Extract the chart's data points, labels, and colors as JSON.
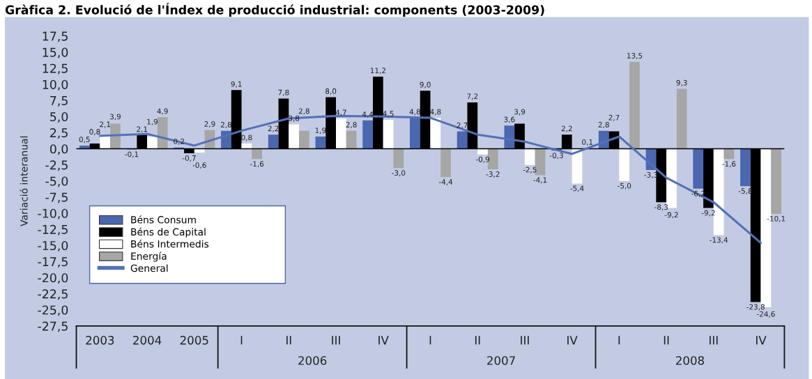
{
  "chart_data": {
    "type": "bar",
    "title": "Gràfica 2. Evolució de l'Índex de producció industrial: components (2003-2009)",
    "ylabel": "Variació interanual",
    "categories": [
      "2003",
      "2004",
      "2005",
      "I",
      "II",
      "III",
      "IV",
      "I",
      "II",
      "III",
      "IV",
      "I",
      "II",
      "III",
      "IV"
    ],
    "series": [
      {
        "name": "Béns Consum",
        "color": "#4a67b0",
        "values": [
          0.5,
          -0.1,
          0.2,
          2.8,
          2.2,
          1.9,
          4.4,
          4.8,
          2.7,
          3.6,
          -0.3,
          2.8,
          -3.3,
          -6.2,
          -5.8
        ],
        "value_labels": [
          "0,5",
          "-0,1",
          "0,2",
          "2,8",
          "2,2",
          "1,9",
          "4,4",
          "4,8",
          "2,7",
          "3,6",
          "-0,3",
          "2,8",
          "-3,3",
          "-6,2",
          "-5,8"
        ]
      },
      {
        "name": "Béns de Capital",
        "color": "#000000",
        "values": [
          0.8,
          2.1,
          -0.7,
          9.1,
          7.8,
          8.0,
          11.2,
          9.0,
          7.2,
          3.9,
          2.2,
          2.7,
          -8.3,
          -9.2,
          -23.8
        ],
        "value_labels": [
          "0,8",
          "2,1",
          "-0,7",
          "9,1",
          "7,8",
          "8,0",
          "11,2",
          "9,0",
          "7,2",
          "3,9",
          "2,2",
          "2,7",
          "-8,3",
          "-9,2",
          "-23,8"
        ]
      },
      {
        "name": "Béns Intermedis",
        "color": "#ffffff",
        "values": [
          2.1,
          1.9,
          -0.6,
          0.8,
          3.8,
          4.7,
          4.5,
          4.8,
          -0.9,
          -2.5,
          -5.4,
          -5.0,
          -9.2,
          -13.4,
          -24.6
        ],
        "value_labels": [
          "2,1",
          "1,9",
          "-0,6",
          "0,8",
          "3,8",
          "4,7",
          "4,5",
          "4,8",
          "-0,9",
          "-2,5",
          "-5,4",
          "-5,0",
          "-9,2",
          "-13,4",
          "-24,6"
        ]
      },
      {
        "name": "Energía",
        "color": "#a6a6a6",
        "values": [
          3.9,
          4.9,
          2.9,
          -1.6,
          2.8,
          2.8,
          -3.0,
          -4.4,
          -3.2,
          -4.1,
          0.1,
          13.5,
          9.3,
          -1.6,
          -10.1
        ],
        "value_labels": [
          "3,9",
          "4,9",
          "2,9",
          "-1,6",
          "2,8",
          "2,8",
          "-3,0",
          "-4,4",
          "-3,2",
          "-4,1",
          "0,1",
          "13,5",
          "9,3",
          "-1,6",
          "-10,1"
        ]
      },
      {
        "name": "General",
        "type": "line",
        "color": "#5470b8",
        "values": [
          2.0,
          2.3,
          0.5,
          2.8,
          4.7,
          5.1,
          5.0,
          4.8,
          2.2,
          1.1,
          -0.8,
          1.9,
          -4.5,
          -8.3,
          -14.6
        ]
      }
    ],
    "ylim": [
      -27.5,
      17.5
    ],
    "yticks": [
      {
        "value": -27.5,
        "label": "-27,5"
      },
      {
        "value": -25,
        "label": "-25,0"
      },
      {
        "value": -22.5,
        "label": "-22,5"
      },
      {
        "value": -20,
        "label": "-20,0"
      },
      {
        "value": -17.5,
        "label": "-17,5"
      },
      {
        "value": -15,
        "label": "-15,0"
      },
      {
        "value": -12.5,
        "label": "-12,5"
      },
      {
        "value": -10,
        "label": "-10,0"
      },
      {
        "value": -7.5,
        "label": "-7,5"
      },
      {
        "value": -5,
        "label": "-5,0"
      },
      {
        "value": -2.5,
        "label": "-2,5"
      },
      {
        "value": 0,
        "label": "0,0"
      },
      {
        "value": 2.5,
        "label": "2,5"
      },
      {
        "value": 5,
        "label": "5,0"
      },
      {
        "value": 7.5,
        "label": "7,5"
      },
      {
        "value": 10,
        "label": "10,0"
      },
      {
        "value": 12.5,
        "label": "12,5"
      },
      {
        "value": 15,
        "label": "15,0"
      },
      {
        "value": 17.5,
        "label": "17,5"
      }
    ],
    "ref_lines": [
      {
        "axis": "y",
        "value": 0,
        "color": "#000000"
      }
    ],
    "legend": "lower left",
    "annotations": [
      "2006",
      "2007",
      "2008"
    ]
  }
}
